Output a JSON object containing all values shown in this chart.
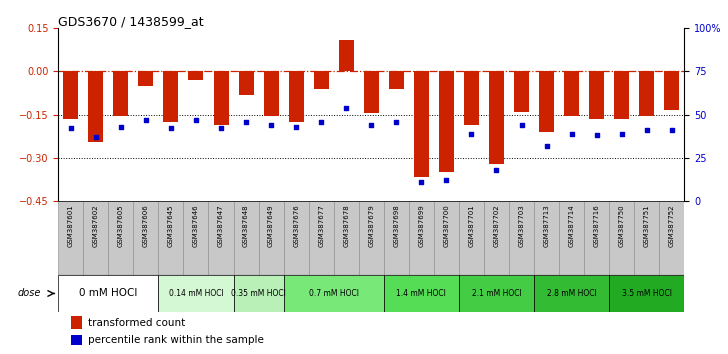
{
  "title": "GDS3670 / 1438599_at",
  "samples": [
    "GSM387601",
    "GSM387602",
    "GSM387605",
    "GSM387606",
    "GSM387645",
    "GSM387646",
    "GSM387647",
    "GSM387648",
    "GSM387649",
    "GSM387676",
    "GSM387677",
    "GSM387678",
    "GSM387679",
    "GSM387698",
    "GSM387699",
    "GSM387700",
    "GSM387701",
    "GSM387702",
    "GSM387703",
    "GSM387713",
    "GSM387714",
    "GSM387716",
    "GSM387750",
    "GSM387751",
    "GSM387752"
  ],
  "bar_values": [
    -0.165,
    -0.245,
    -0.155,
    -0.05,
    -0.175,
    -0.03,
    -0.185,
    -0.08,
    -0.155,
    -0.175,
    -0.06,
    0.11,
    -0.145,
    -0.06,
    -0.365,
    -0.35,
    -0.185,
    -0.32,
    -0.14,
    -0.21,
    -0.155,
    -0.165,
    -0.165,
    -0.155,
    -0.135
  ],
  "dot_values": [
    42,
    37,
    43,
    47,
    42,
    47,
    42,
    46,
    44,
    43,
    46,
    54,
    44,
    46,
    11,
    12,
    39,
    18,
    44,
    32,
    39,
    38,
    39,
    41,
    41
  ],
  "dose_groups": [
    {
      "label": "0 mM HOCl",
      "start": 0,
      "end": 4,
      "color": "#ffffff"
    },
    {
      "label": "0.14 mM HOCl",
      "start": 4,
      "end": 7,
      "color": "#d4f7d4"
    },
    {
      "label": "0.35 mM HOCl",
      "start": 7,
      "end": 9,
      "color": "#b8f0b8"
    },
    {
      "label": "0.7 mM HOCl",
      "start": 9,
      "end": 13,
      "color": "#78e878"
    },
    {
      "label": "1.4 mM HOCl",
      "start": 13,
      "end": 16,
      "color": "#55dd55"
    },
    {
      "label": "2.1 mM HOCl",
      "start": 16,
      "end": 19,
      "color": "#44cc44"
    },
    {
      "label": "2.8 mM HOCl",
      "start": 19,
      "end": 22,
      "color": "#33bb33"
    },
    {
      "label": "3.5 mM HOCl",
      "start": 22,
      "end": 25,
      "color": "#22aa22"
    }
  ],
  "ylim": [
    -0.45,
    0.15
  ],
  "yticks_left": [
    0.15,
    0.0,
    -0.15,
    -0.3,
    -0.45
  ],
  "yticks_right": [
    100,
    75,
    50,
    25,
    0
  ],
  "bar_color": "#cc2200",
  "dot_color": "#0000cc",
  "dotted_lines": [
    -0.15,
    -0.3
  ],
  "legend_bar_label": "transformed count",
  "legend_dot_label": "percentile rank within the sample",
  "tick_bg_color": "#c8c8c8",
  "tick_border_color": "#888888"
}
